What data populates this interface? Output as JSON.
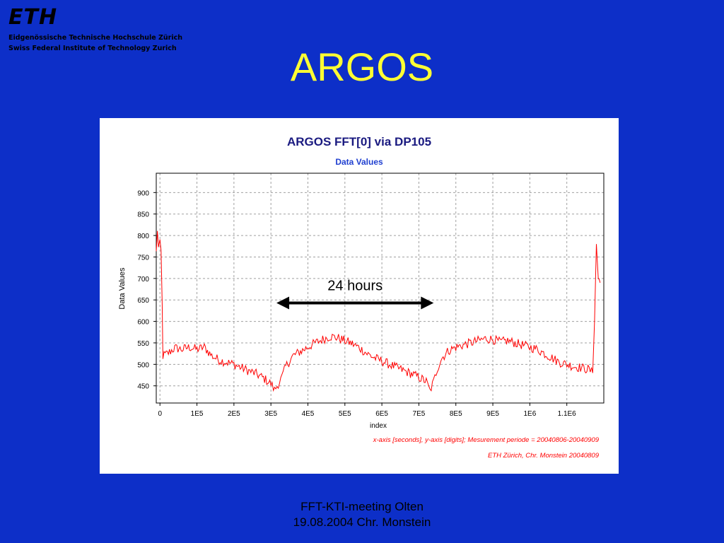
{
  "logo": {
    "mark": "ETH",
    "line1": "Eidgenössische Technische Hochschule Zürich",
    "line2": "Swiss Federal Institute of Technology Zurich"
  },
  "slide_title": "ARGOS",
  "footer": {
    "line1": "FFT-KTI-meeting Olten",
    "line2": "19.08.2004 Chr. Monstein"
  },
  "colors": {
    "background": "#0d2fc8",
    "title": "#ffff33",
    "series": "#ff0000",
    "chart_title": "#1a1a80",
    "subtitle": "#1f3fd0",
    "notes": "#ff0000"
  },
  "chart_data": {
    "type": "line",
    "title": "ARGOS FFT[0] via DP105",
    "subtitle": "Data Values",
    "xlabel": "index",
    "ylabel": "Data Values",
    "xlim": [
      -10000,
      1200000
    ],
    "ylim": [
      410,
      945
    ],
    "xticks": [
      {
        "v": 0,
        "label": "0"
      },
      {
        "v": 100000,
        "label": "1E5"
      },
      {
        "v": 200000,
        "label": "2E5"
      },
      {
        "v": 300000,
        "label": "3E5"
      },
      {
        "v": 400000,
        "label": "4E5"
      },
      {
        "v": 500000,
        "label": "5E5"
      },
      {
        "v": 600000,
        "label": "6E5"
      },
      {
        "v": 700000,
        "label": "7E5"
      },
      {
        "v": 800000,
        "label": "8E5"
      },
      {
        "v": 900000,
        "label": "9E5"
      },
      {
        "v": 1000000,
        "label": "1E6"
      },
      {
        "v": 1100000,
        "label": "1.1E6"
      }
    ],
    "yticks": [
      450,
      500,
      550,
      600,
      650,
      700,
      750,
      800,
      850,
      900
    ],
    "grid": true,
    "series": [
      {
        "color": "#ff0000",
        "points": [
          [
            -10000,
            760
          ],
          [
            -7000,
            815
          ],
          [
            -4000,
            770
          ],
          [
            0,
            780
          ],
          [
            3000,
            765
          ],
          [
            6000,
            640
          ],
          [
            8000,
            520
          ],
          [
            20000,
            525
          ],
          [
            40000,
            538
          ],
          [
            60000,
            535
          ],
          [
            80000,
            540
          ],
          [
            100000,
            535
          ],
          [
            120000,
            540
          ],
          [
            140000,
            520
          ],
          [
            160000,
            510
          ],
          [
            180000,
            505
          ],
          [
            200000,
            500
          ],
          [
            220000,
            492
          ],
          [
            240000,
            485
          ],
          [
            260000,
            478
          ],
          [
            280000,
            468
          ],
          [
            300000,
            455
          ],
          [
            310000,
            440
          ],
          [
            320000,
            455
          ],
          [
            330000,
            470
          ],
          [
            340000,
            495
          ],
          [
            360000,
            520
          ],
          [
            380000,
            530
          ],
          [
            400000,
            540
          ],
          [
            420000,
            550
          ],
          [
            440000,
            558
          ],
          [
            460000,
            565
          ],
          [
            480000,
            562
          ],
          [
            500000,
            555
          ],
          [
            520000,
            548
          ],
          [
            540000,
            538
          ],
          [
            560000,
            525
          ],
          [
            580000,
            515
          ],
          [
            600000,
            508
          ],
          [
            620000,
            500
          ],
          [
            640000,
            492
          ],
          [
            660000,
            485
          ],
          [
            680000,
            478
          ],
          [
            700000,
            470
          ],
          [
            720000,
            460
          ],
          [
            730000,
            438
          ],
          [
            740000,
            460
          ],
          [
            750000,
            490
          ],
          [
            760000,
            512
          ],
          [
            780000,
            532
          ],
          [
            800000,
            540
          ],
          [
            820000,
            545
          ],
          [
            840000,
            550
          ],
          [
            860000,
            555
          ],
          [
            880000,
            560
          ],
          [
            900000,
            558
          ],
          [
            920000,
            552
          ],
          [
            940000,
            555
          ],
          [
            960000,
            550
          ],
          [
            980000,
            545
          ],
          [
            1000000,
            540
          ],
          [
            1020000,
            535
          ],
          [
            1040000,
            525
          ],
          [
            1060000,
            515
          ],
          [
            1080000,
            505
          ],
          [
            1100000,
            500
          ],
          [
            1120000,
            495
          ],
          [
            1140000,
            492
          ],
          [
            1160000,
            488
          ],
          [
            1170000,
            480
          ],
          [
            1175000,
            600
          ],
          [
            1180000,
            780
          ],
          [
            1185000,
            700
          ],
          [
            1190000,
            690
          ]
        ]
      }
    ],
    "annotation": {
      "label": "24 hours",
      "x_start": 315000,
      "x_end": 740000,
      "y": 643
    },
    "notes": [
      "x-axis [seconds], y-axis [digits]; Mesurement periode = 20040806-20040909",
      "ETH Zürich, Chr. Monstein 20040809"
    ]
  }
}
